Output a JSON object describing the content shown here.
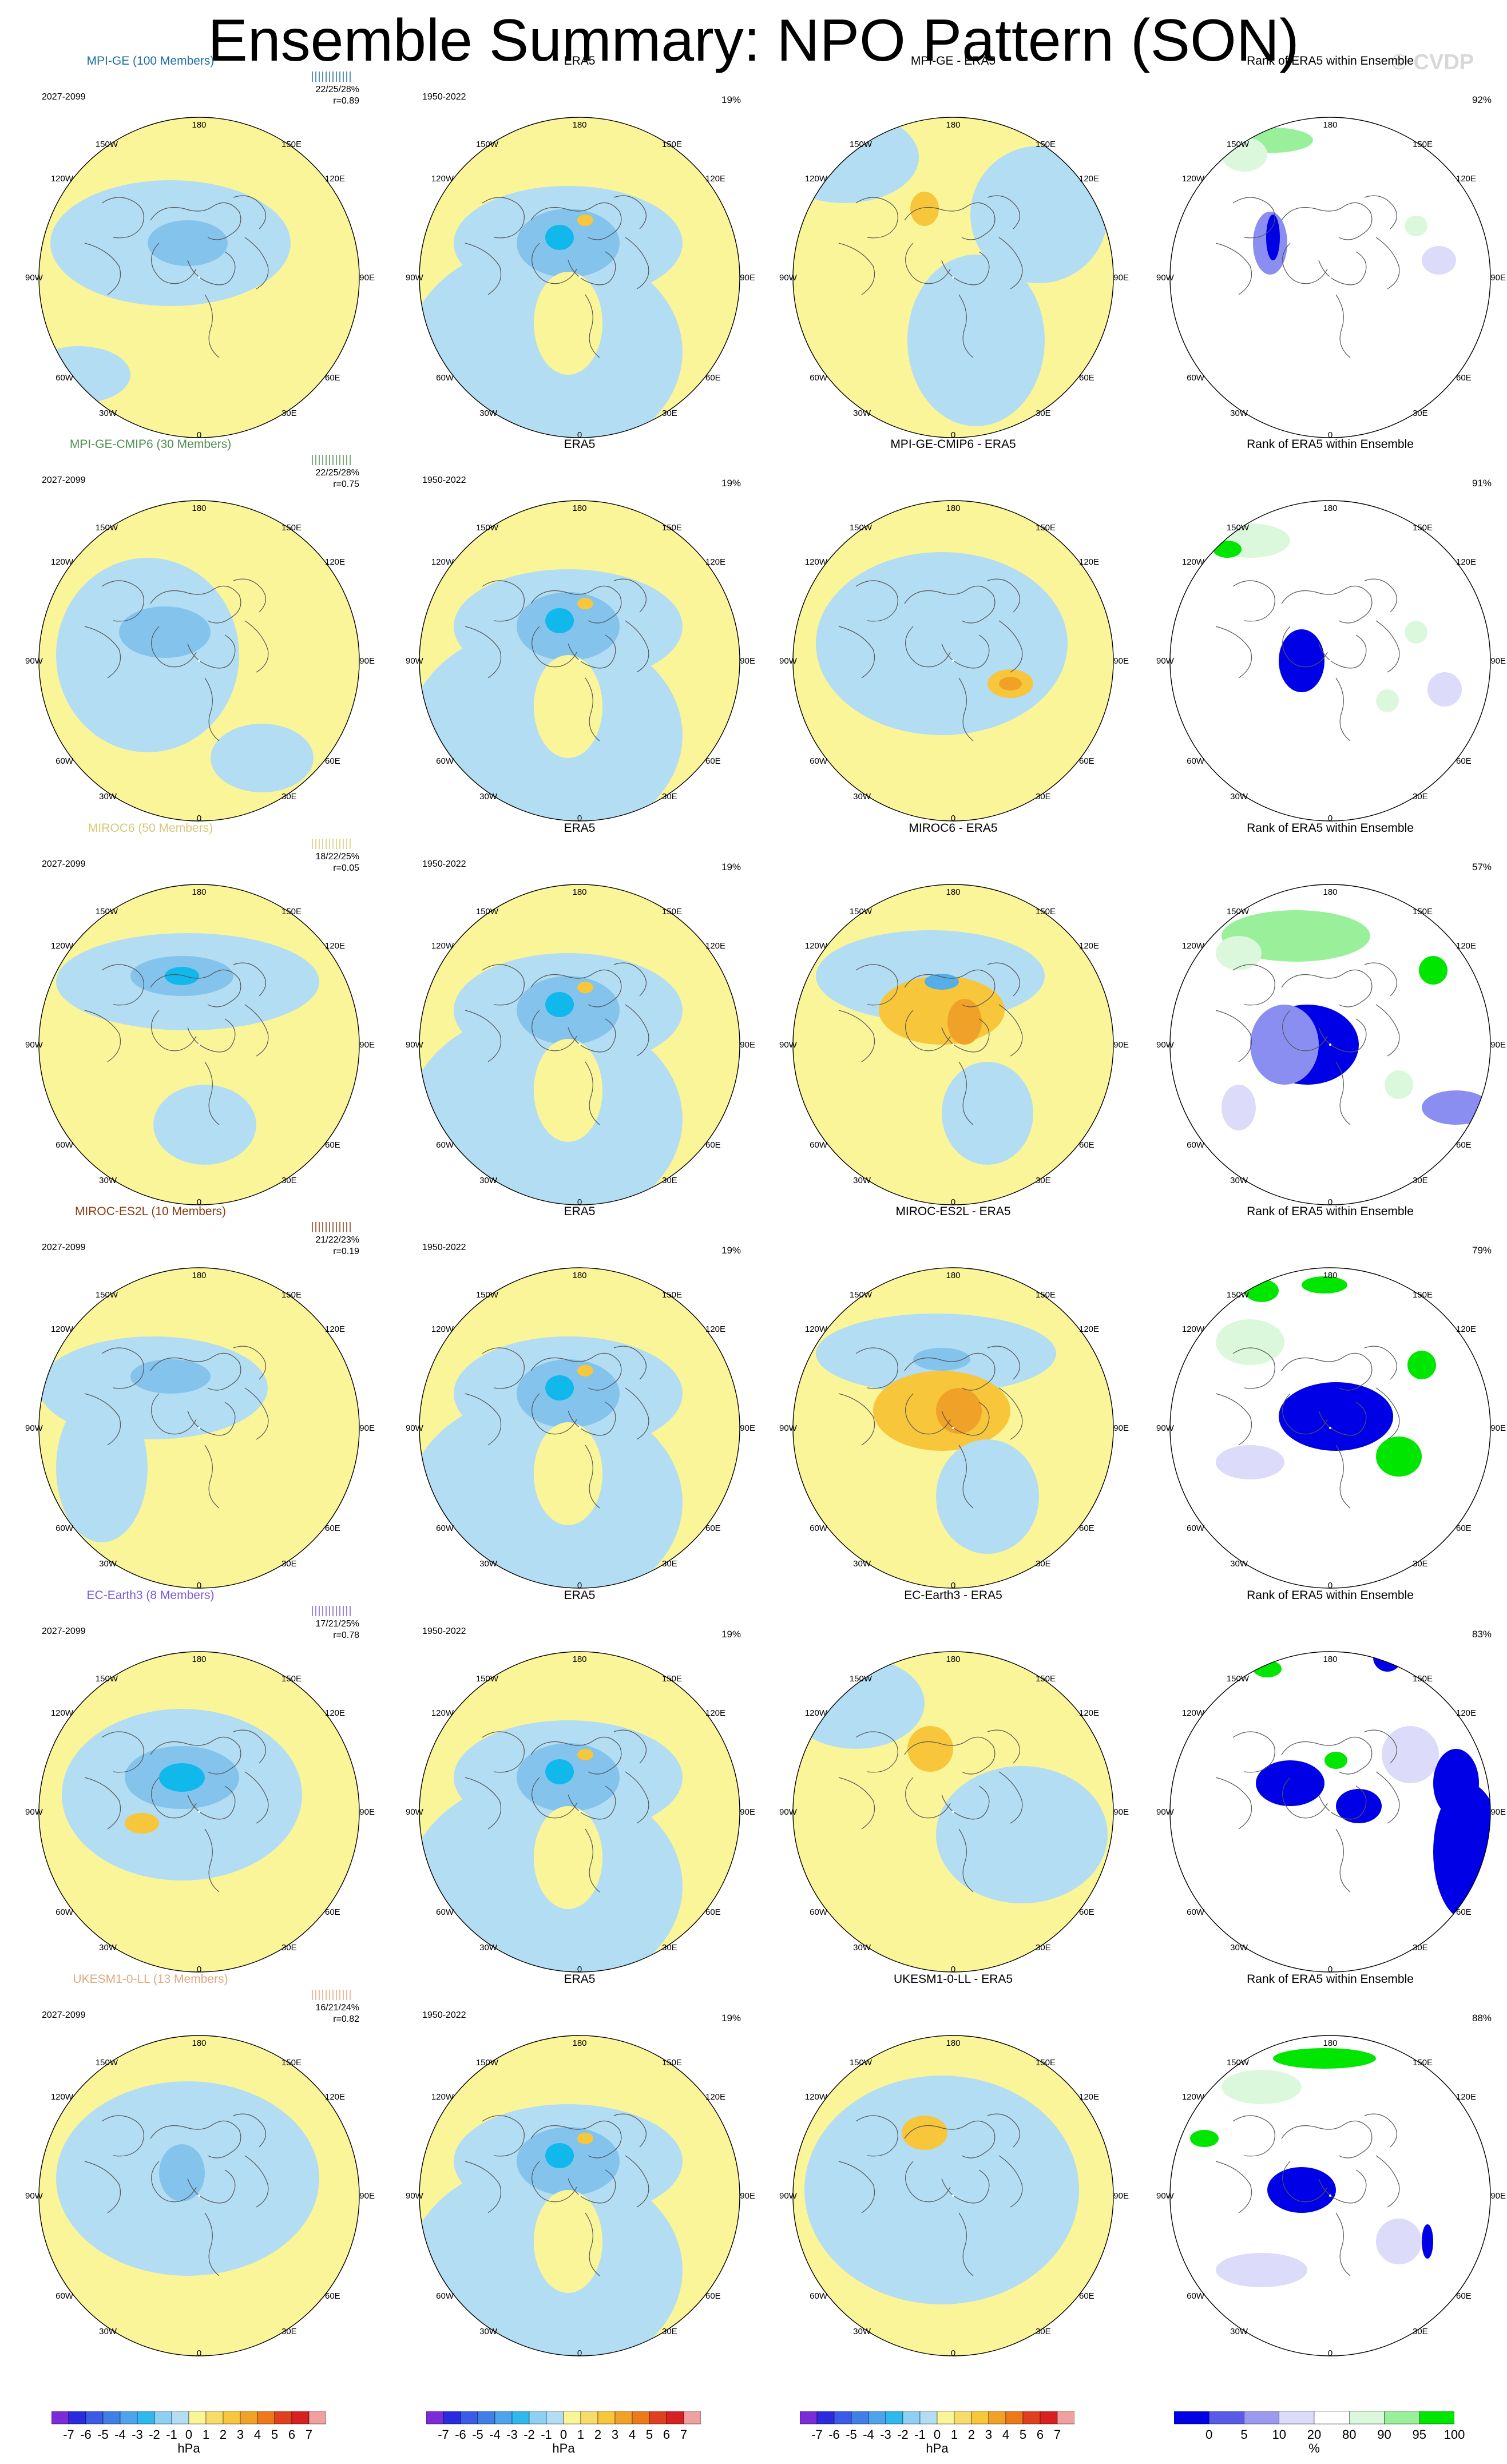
{
  "title": "Ensemble Summary: NPO Pattern (SON)",
  "copyright": "© CVDP",
  "map_labels": {
    "top": "180",
    "bottom": "0",
    "left": "90W",
    "right": "90E",
    "upper_left1": "150W",
    "upper_left2": "120W",
    "upper_right1": "150E",
    "upper_right2": "120E",
    "lower_left1": "60W",
    "lower_left2": "30W",
    "lower_right1": "60E",
    "lower_right2": "30E"
  },
  "colors": {
    "yellow": "#fbf59a",
    "lightblue": "#b3ddf2",
    "blue1": "#84c3ec",
    "blue2": "#55aee8",
    "blue3": "#10b8ec",
    "orange1": "#f7c63a",
    "orange2": "#f0a228",
    "rank_blue_dark": "#0000e6",
    "rank_blue_mid": "#8a8ef0",
    "rank_blue_light": "#dcdcfa",
    "rank_green_light": "#dcf8dc",
    "rank_green_mid": "#9af09a",
    "rank_green_bright": "#00e600"
  },
  "rows": [
    {
      "model": "MPI-GE (100 Members)",
      "model_color": "#1f6fa0",
      "period": "2027-2099",
      "stats": "22/25/28%",
      "r": "r=0.89",
      "era5_title": "ERA5",
      "era5_period": "1950-2022",
      "era5_pct": "19%",
      "diff_title": "MPI-GE - ERA5",
      "rank_title": "Rank of ERA5 within Ensemble",
      "rank_pct": "92%"
    },
    {
      "model": "MPI-GE-CMIP6 (30 Members)",
      "model_color": "#4f8f4f",
      "period": "2027-2099",
      "stats": "22/25/28%",
      "r": "r=0.75",
      "era5_title": "ERA5",
      "era5_period": "1950-2022",
      "era5_pct": "19%",
      "diff_title": "MPI-GE-CMIP6 - ERA5",
      "rank_title": "Rank of ERA5 within Ensemble",
      "rank_pct": "91%"
    },
    {
      "model": "MIROC6 (50 Members)",
      "model_color": "#d8c878",
      "period": "2027-2099",
      "stats": "18/22/25%",
      "r": "r=0.05",
      "era5_title": "ERA5",
      "era5_period": "1950-2022",
      "era5_pct": "19%",
      "diff_title": "MIROC6 - ERA5",
      "rank_title": "Rank of ERA5 within Ensemble",
      "rank_pct": "57%"
    },
    {
      "model": "MIROC-ES2L (10 Members)",
      "model_color": "#8b3a10",
      "period": "2027-2099",
      "stats": "21/22/23%",
      "r": "r=0.19",
      "era5_title": "ERA5",
      "era5_period": "1950-2022",
      "era5_pct": "19%",
      "diff_title": "MIROC-ES2L - ERA5",
      "rank_title": "Rank of ERA5 within Ensemble",
      "rank_pct": "79%"
    },
    {
      "model": "EC-Earth3 (8 Members)",
      "model_color": "#7a5adc",
      "period": "2027-2099",
      "stats": "17/21/25%",
      "r": "r=0.78",
      "era5_title": "ERA5",
      "era5_period": "1950-2022",
      "era5_pct": "19%",
      "diff_title": "EC-Earth3 - ERA5",
      "rank_title": "Rank of ERA5 within Ensemble",
      "rank_pct": "83%"
    },
    {
      "model": "UKESM1-0-LL (13 Members)",
      "model_color": "#e0a880",
      "period": "2027-2099",
      "stats": "16/21/24%",
      "r": "r=0.82",
      "era5_title": "ERA5",
      "era5_period": "1950-2022",
      "era5_pct": "19%",
      "diff_title": "UKESM1-0-LL - ERA5",
      "rank_title": "Rank of ERA5 within Ensemble",
      "rank_pct": "88%"
    }
  ],
  "chart_data": {
    "type": "heatmap",
    "title": "Ensemble Summary: NPO Pattern (SON)",
    "panels_per_row": [
      "model pattern",
      "ERA5",
      "model - ERA5",
      "Rank of ERA5 within Ensemble"
    ],
    "pattern_colorbar": {
      "unit": "hPa",
      "levels": [
        -7,
        -6,
        -5,
        -4,
        -3,
        -2,
        -1,
        0,
        1,
        2,
        3,
        4,
        5,
        6,
        7
      ],
      "tick_labels": [
        "-7",
        "-6",
        "-5",
        "-4",
        "-3",
        "-2",
        "-1",
        "0",
        "1",
        "2",
        "3",
        "4",
        "5",
        "6",
        "7"
      ],
      "colors": [
        "#7b2bd8",
        "#2a2ae0",
        "#3a5ae8",
        "#3f7fe6",
        "#4ea4ec",
        "#2fb8ee",
        "#8ed0f2",
        "#b3ddf2",
        "#fbf59a",
        "#f7dc6a",
        "#f7c63a",
        "#f0a228",
        "#ec7a1a",
        "#e04020",
        "#d82020",
        "#f0a0a0"
      ]
    },
    "rank_colorbar": {
      "unit": "%",
      "tick_labels": [
        "0",
        "5",
        "10",
        "20",
        "80",
        "90",
        "95",
        "100"
      ],
      "colors": [
        "#0000e6",
        "#5a5ae8",
        "#9a9af0",
        "#dcdcfa",
        "#ffffff",
        "#dcf8dc",
        "#9af09a",
        "#00e600"
      ]
    }
  }
}
